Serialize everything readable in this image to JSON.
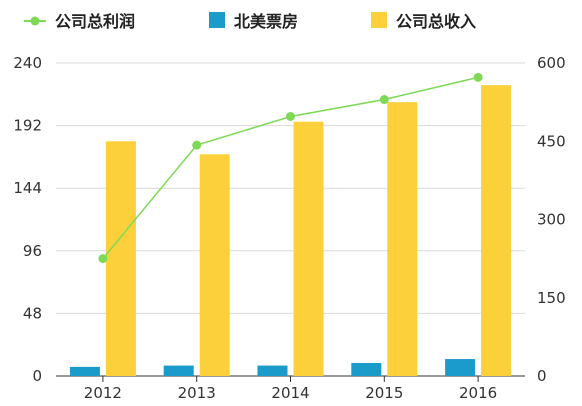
{
  "chart_data": {
    "type": "bar",
    "categories": [
      "2012",
      "2013",
      "2014",
      "2015",
      "2016"
    ],
    "series": [
      {
        "name": "公司总利润",
        "type": "line",
        "axis": "left",
        "color": "#7ed957",
        "values": [
          90,
          177,
          199,
          212,
          229
        ]
      },
      {
        "name": "北美票房",
        "type": "bar",
        "axis": "left",
        "color": "#1a9bc9",
        "values": [
          7,
          8,
          8,
          10,
          13
        ]
      },
      {
        "name": "公司总收入",
        "type": "bar",
        "axis": "left",
        "color": "#fbd03a",
        "values": [
          180,
          170,
          195,
          210,
          223
        ]
      }
    ],
    "left_axis": {
      "min": 0,
      "max": 240,
      "ticks": [
        "0",
        "48",
        "96",
        "144",
        "192",
        "240"
      ]
    },
    "right_axis": {
      "min": 0,
      "max": 600,
      "ticks": [
        "0",
        "150",
        "300",
        "450",
        "600"
      ]
    },
    "grid": true,
    "legend_position": "top-left"
  }
}
